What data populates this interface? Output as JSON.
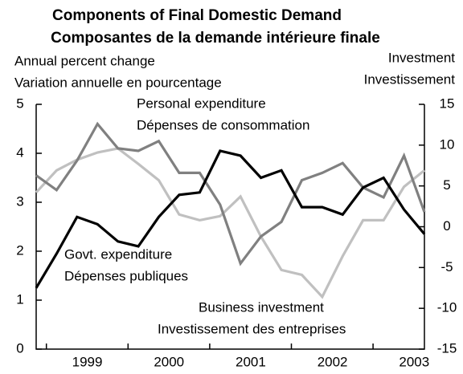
{
  "chart_data": {
    "type": "line",
    "title": "Components of Final Domestic Demand",
    "subtitle": "Composantes de la demande intérieure finale",
    "y_label": [
      "Annual percent change",
      "Variation annuelle en pourcentage"
    ],
    "y2_label": [
      "Investment",
      "Investissement"
    ],
    "categories": [
      null,
      null,
      "1999",
      null,
      null,
      null,
      "2000",
      null,
      null,
      null,
      "2001",
      null,
      null,
      null,
      "2002",
      null,
      null,
      null,
      "2003",
      null
    ],
    "series": [
      {
        "name": [
          "Personal expenditure",
          "Dépenses de consommation"
        ],
        "color": "#808080",
        "values": [
          3.55,
          3.25,
          3.85,
          4.6,
          4.1,
          4.05,
          4.25,
          3.6,
          3.6,
          2.95,
          1.75,
          2.3,
          2.6,
          3.45,
          3.6,
          3.8,
          3.3,
          3.1,
          3.95,
          2.8
        ]
      },
      {
        "name": [
          "Govt. expenditure",
          "Dépenses publiques"
        ],
        "color": "#000000",
        "values": [
          1.25,
          1.95,
          2.7,
          2.55,
          2.2,
          2.1,
          2.7,
          3.15,
          3.2,
          4.05,
          3.95,
          3.5,
          3.65,
          2.9,
          2.9,
          2.75,
          3.3,
          3.5,
          2.85,
          2.35
        ]
      },
      {
        "name": [
          "Business investment",
          "Investissement des entreprises"
        ],
        "color": "#c0c0c0",
        "axis": "y2",
        "values": [
          4.2,
          6.9,
          8.2,
          9.1,
          9.6,
          7.7,
          5.7,
          1.5,
          0.8,
          1.3,
          3.7,
          -1.2,
          -5.3,
          -5.9,
          -8.6,
          -3.6,
          0.8,
          0.8,
          4.9,
          6.9
        ]
      }
    ],
    "ylim": [
      0,
      5
    ],
    "yticks": [
      0,
      1,
      2,
      3,
      4,
      5
    ],
    "y2lim": [
      -15,
      15
    ],
    "y2ticks": [
      -15,
      -10,
      -5,
      0,
      5,
      10,
      15
    ]
  }
}
